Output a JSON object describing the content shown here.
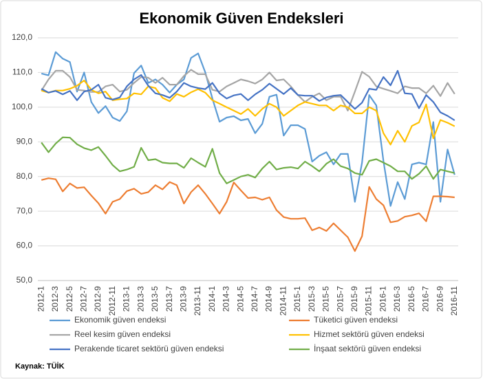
{
  "chart_data": {
    "type": "line",
    "title": "Ekonomik Güven Endeksleri",
    "source": "Kaynak: TÜİK",
    "categories": [
      "2012-1",
      null,
      "2012-3",
      null,
      "2012-5",
      null,
      "2012-7",
      null,
      "2012-9",
      null,
      "2012-11",
      null,
      "2013-1",
      null,
      "2013-3",
      null,
      "2013-5",
      null,
      "2013-7",
      null,
      "2013-9",
      null,
      "2013-11",
      null,
      "2014-1",
      null,
      "2014-3",
      null,
      "2014-5",
      null,
      "2014-7",
      null,
      "2014-9",
      null,
      "2014-11",
      null,
      "2015-1",
      null,
      "2015-3",
      null,
      "2015-5",
      null,
      "2015-7",
      null,
      "2015-9",
      null,
      "2015-11",
      null,
      "2016-1",
      null,
      "2016-3",
      null,
      "2016-5",
      null,
      "2016-7",
      null,
      "2016-9",
      null,
      "2016-11"
    ],
    "series": [
      {
        "name": "Ekonomik güven endeksi",
        "color": "#5b9bd5",
        "values": [
          109.7,
          109.2,
          115.9,
          114,
          113,
          104.5,
          110,
          101.5,
          98.3,
          100.3,
          97,
          96,
          98.8,
          109.8,
          112,
          107,
          108,
          106.5,
          104.2,
          106.5,
          108,
          114.2,
          115.5,
          110,
          102.5,
          95.8,
          97,
          97.4,
          96.2,
          96.6,
          92.5,
          95.2,
          103,
          103.6,
          91.8,
          94.8,
          94.8,
          93.7,
          84.3,
          86,
          87,
          83.5,
          86.5,
          86.5,
          72.7,
          84,
          103.5,
          100.5,
          84.5,
          71.5,
          78.4,
          73.5,
          83.5,
          84,
          83.5,
          95.7,
          72.7,
          87.8,
          80.5
        ]
      },
      {
        "name": "Tüketici güven endeksi",
        "color": "#ed7d31",
        "values": [
          79,
          79.5,
          79.2,
          75.7,
          78,
          76.7,
          76.9,
          74.5,
          72.3,
          69.3,
          72.7,
          73.5,
          75.8,
          76.5,
          75,
          75.5,
          77.5,
          76.3,
          78.4,
          77.5,
          72.2,
          75.5,
          77.5,
          75,
          72.2,
          69.3,
          72.7,
          78.3,
          76,
          73.8,
          74,
          73.3,
          74,
          70.3,
          68.3,
          67.8,
          67.8,
          68,
          64.5,
          65.3,
          64.3,
          66.5,
          64.5,
          62.5,
          58.5,
          62.8,
          77,
          73.5,
          71.7,
          66.8,
          67.2,
          68.4,
          68.8,
          69.4,
          67.1,
          74.3,
          74.3,
          74.2,
          74
        ]
      },
      {
        "name": "Reel kesim güven endeksi",
        "color": "#a5a5a5",
        "values": [
          104.8,
          108,
          110.5,
          110.5,
          108.7,
          105,
          104.8,
          104.4,
          104.4,
          106,
          106.5,
          104.5,
          105,
          107,
          108.7,
          108.5,
          107,
          108.5,
          106.5,
          106.5,
          109,
          110.8,
          109.5,
          109.5,
          105,
          104.5,
          106,
          107,
          108,
          107.5,
          106.8,
          108,
          110,
          107.7,
          108,
          106,
          103.5,
          101.5,
          103,
          104,
          102,
          103,
          103,
          99,
          104.5,
          110.2,
          108.8,
          106,
          105.3,
          104.7,
          104,
          106,
          105.5,
          105.5,
          104,
          106.2,
          103.2,
          107,
          103.8
        ]
      },
      {
        "name": "Hizmet sektörü güven endeksi",
        "color": "#ffc000",
        "values": [
          104.8,
          104.2,
          104.8,
          104.8,
          105.3,
          106.2,
          107.7,
          105,
          104,
          104.5,
          102,
          102.3,
          102.5,
          104,
          103.7,
          106,
          105.5,
          102.7,
          101.7,
          103.8,
          103,
          104.3,
          105.2,
          104.2,
          102,
          101,
          100,
          99,
          98,
          99.5,
          97.5,
          99.5,
          101,
          100,
          97.5,
          99,
          100.5,
          101.5,
          101,
          100.5,
          100.5,
          99,
          100.5,
          100,
          98.2,
          98.2,
          100,
          99,
          92.5,
          89.2,
          93.2,
          90,
          94.6,
          95.6,
          100.8,
          91,
          96.3,
          95.5,
          94.5
        ]
      },
      {
        "name": "Perakende ticaret sektörü güven endeksi",
        "color": "#4472c4",
        "values": [
          105.3,
          104.2,
          104.7,
          103.7,
          104.7,
          102,
          104.5,
          105,
          106.5,
          102.7,
          102.2,
          102.8,
          106,
          108,
          109.3,
          106.2,
          104,
          103.5,
          102.7,
          104.5,
          107,
          106,
          105.5,
          105.2,
          107,
          104,
          102.5,
          103.4,
          103.8,
          102,
          103.7,
          105,
          106.8,
          105.3,
          103.8,
          105.5,
          103.5,
          103.3,
          103.3,
          101.8,
          102.8,
          103.3,
          103.5,
          101.5,
          99.5,
          101.3,
          105.3,
          105,
          108.7,
          106.3,
          110.5,
          104,
          103.8,
          99.7,
          103.5,
          101.5,
          98.5,
          97.5,
          96.2
        ]
      },
      {
        "name": "İnşaat sektörü güven endeksi",
        "color": "#70ad47",
        "values": [
          89.8,
          87,
          89.5,
          91.3,
          91.2,
          89.3,
          88.2,
          87.6,
          88.5,
          86,
          83.3,
          81.5,
          82,
          82.8,
          88.3,
          84.7,
          85,
          84,
          83.8,
          83.8,
          82.5,
          85.3,
          84,
          82.8,
          88,
          81,
          78,
          79,
          80,
          80.5,
          79.7,
          82.3,
          84.3,
          82,
          82.5,
          82.7,
          82.3,
          84.3,
          83,
          81.5,
          83.7,
          85,
          83,
          82.3,
          81,
          80.5,
          84.5,
          85,
          84,
          83,
          81.5,
          81.5,
          79.3,
          80.8,
          83,
          79.3,
          82,
          81.5,
          81
        ]
      }
    ],
    "ylim": [
      50,
      120
    ],
    "yticks": [
      {
        "value": 50,
        "label": "50,0"
      },
      {
        "value": 60,
        "label": "60,0"
      },
      {
        "value": 70,
        "label": "70,0"
      },
      {
        "value": 80,
        "label": "80,0"
      },
      {
        "value": 90,
        "label": "90,0"
      },
      {
        "value": 100,
        "label": "100,0"
      },
      {
        "value": 110,
        "label": "110,0"
      },
      {
        "value": 120,
        "label": "120,0"
      }
    ],
    "grid": true
  }
}
